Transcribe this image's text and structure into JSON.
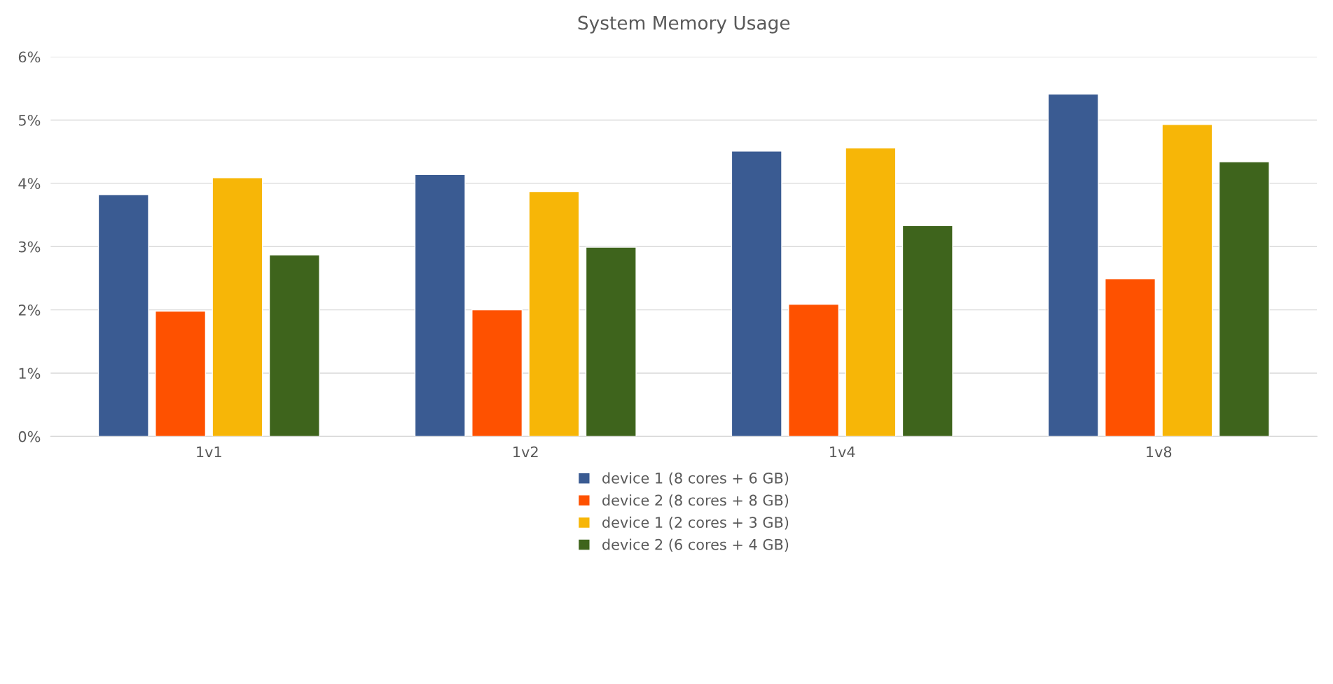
{
  "chart_data": {
    "type": "bar",
    "title": "System Memory Usage",
    "categories": [
      "1v1",
      "1v2",
      "1v4",
      "1v8"
    ],
    "series": [
      {
        "name": "device 1 (8 cores + 6 GB)",
        "color": "#3a5b92",
        "values": [
          3.82,
          4.14,
          4.51,
          5.41
        ]
      },
      {
        "name": "device 2 (8 cores + 8 GB)",
        "color": "#fe5100",
        "values": [
          1.98,
          2.0,
          2.09,
          2.49
        ]
      },
      {
        "name": "device 1 (2 cores + 3 GB)",
        "color": "#f7b607",
        "values": [
          4.09,
          3.87,
          4.56,
          4.93
        ]
      },
      {
        "name": "device 2 (6 cores + 4 GB)",
        "color": "#3e641c",
        "values": [
          2.87,
          2.99,
          3.33,
          4.34
        ]
      }
    ],
    "ylim": [
      0,
      6
    ],
    "yticks": [
      {
        "value": 0,
        "label": "0%"
      },
      {
        "value": 1,
        "label": "1%"
      },
      {
        "value": 2,
        "label": "2%"
      },
      {
        "value": 3,
        "label": "3%"
      },
      {
        "value": 4,
        "label": "4%"
      },
      {
        "value": 5,
        "label": "5%"
      },
      {
        "value": 6,
        "label": "6%"
      }
    ],
    "grid": "y",
    "legend": "bottom"
  }
}
